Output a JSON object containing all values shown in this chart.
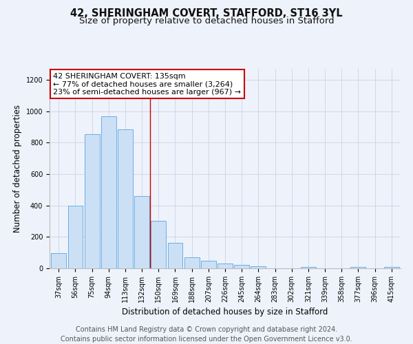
{
  "title": "42, SHERINGHAM COVERT, STAFFORD, ST16 3YL",
  "subtitle": "Size of property relative to detached houses in Stafford",
  "xlabel": "Distribution of detached houses by size in Stafford",
  "ylabel": "Number of detached properties",
  "categories": [
    "37sqm",
    "56sqm",
    "75sqm",
    "94sqm",
    "113sqm",
    "132sqm",
    "150sqm",
    "169sqm",
    "188sqm",
    "207sqm",
    "226sqm",
    "245sqm",
    "264sqm",
    "283sqm",
    "302sqm",
    "321sqm",
    "339sqm",
    "358sqm",
    "377sqm",
    "396sqm",
    "415sqm"
  ],
  "bar_values": [
    95,
    400,
    855,
    970,
    885,
    460,
    300,
    160,
    70,
    50,
    32,
    20,
    12,
    0,
    0,
    10,
    0,
    0,
    10,
    0,
    10
  ],
  "bar_color": "#cce0f5",
  "bar_edge_color": "#6aaee0",
  "vline_x": 5.5,
  "vline_color": "#cc0000",
  "annotation_title": "42 SHERINGHAM COVERT: 135sqm",
  "annotation_line1": "← 77% of detached houses are smaller (3,264)",
  "annotation_line2": "23% of semi-detached houses are larger (967) →",
  "annotation_box_color": "#ffffff",
  "annotation_box_edge_color": "#cc0000",
  "ylim": [
    0,
    1270
  ],
  "yticks": [
    0,
    200,
    400,
    600,
    800,
    1000,
    1200
  ],
  "footer_line1": "Contains HM Land Registry data © Crown copyright and database right 2024.",
  "footer_line2": "Contains public sector information licensed under the Open Government Licence v3.0.",
  "bg_color": "#eef2fb",
  "plot_bg_color": "#eef2fb",
  "title_fontsize": 10.5,
  "subtitle_fontsize": 9.5,
  "footer_fontsize": 7.0,
  "ann_fontsize": 8.0,
  "tick_fontsize": 7.0,
  "axis_label_fontsize": 8.5
}
